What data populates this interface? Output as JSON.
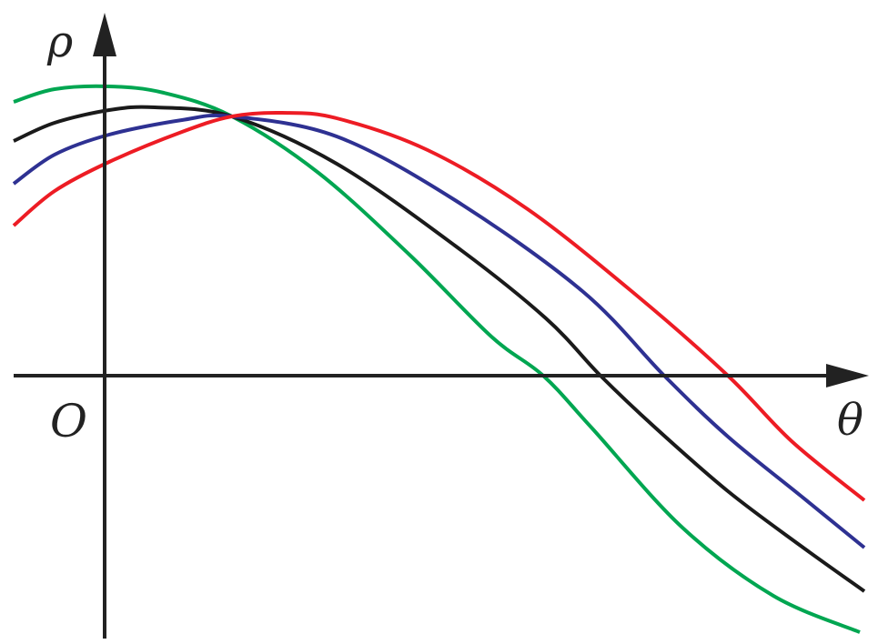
{
  "chart_data": {
    "type": "line",
    "title": "",
    "xlabel": "θ",
    "ylabel": "ρ",
    "origin_label": "O",
    "xlim": [
      -1.0,
      8.4
    ],
    "ylim": [
      -2.87,
      3.98
    ],
    "grid": false,
    "ticks": false,
    "legend": "none",
    "series": [
      {
        "color": "#00a651",
        "points": [
          [
            -1,
            3.01
          ],
          [
            -0.55,
            3.15
          ],
          [
            0.05,
            3.18
          ],
          [
            0.65,
            3.11
          ],
          [
            1.4,
            2.85
          ],
          [
            2.35,
            2.23
          ],
          [
            3.35,
            1.33
          ],
          [
            4.25,
            0.43
          ],
          [
            4.82,
            0
          ],
          [
            5.35,
            -0.57
          ],
          [
            6.35,
            -1.67
          ],
          [
            7.35,
            -2.42
          ],
          [
            8.3,
            -2.82
          ]
        ]
      },
      {
        "color": "#1a1a1a",
        "points": [
          [
            -1,
            2.58
          ],
          [
            -0.55,
            2.78
          ],
          [
            0.05,
            2.92
          ],
          [
            0.55,
            2.95
          ],
          [
            1.4,
            2.85
          ],
          [
            2.55,
            2.33
          ],
          [
            3.85,
            1.43
          ],
          [
            4.85,
            0.63
          ],
          [
            5.45,
            0
          ],
          [
            6.05,
            -0.57
          ],
          [
            6.85,
            -1.27
          ],
          [
            7.65,
            -1.87
          ],
          [
            8.35,
            -2.37
          ]
        ]
      },
      {
        "color": "#2e3192",
        "points": [
          [
            -1,
            2.11
          ],
          [
            -0.55,
            2.43
          ],
          [
            0.05,
            2.65
          ],
          [
            0.85,
            2.81
          ],
          [
            1.4,
            2.85
          ],
          [
            2.55,
            2.63
          ],
          [
            3.85,
            1.93
          ],
          [
            5.25,
            0.93
          ],
          [
            6.15,
            0
          ],
          [
            6.85,
            -0.67
          ],
          [
            7.65,
            -1.32
          ],
          [
            8.35,
            -1.89
          ]
        ]
      },
      {
        "color": "#ed1c24",
        "points": [
          [
            -1,
            1.65
          ],
          [
            -0.55,
            2.03
          ],
          [
            0.05,
            2.35
          ],
          [
            0.85,
            2.68
          ],
          [
            1.4,
            2.85
          ],
          [
            1.95,
            2.89
          ],
          [
            2.55,
            2.83
          ],
          [
            3.55,
            2.48
          ],
          [
            4.65,
            1.83
          ],
          [
            5.85,
            0.88
          ],
          [
            6.85,
            0
          ],
          [
            7.55,
            -0.72
          ],
          [
            8.35,
            -1.37
          ]
        ]
      }
    ]
  }
}
